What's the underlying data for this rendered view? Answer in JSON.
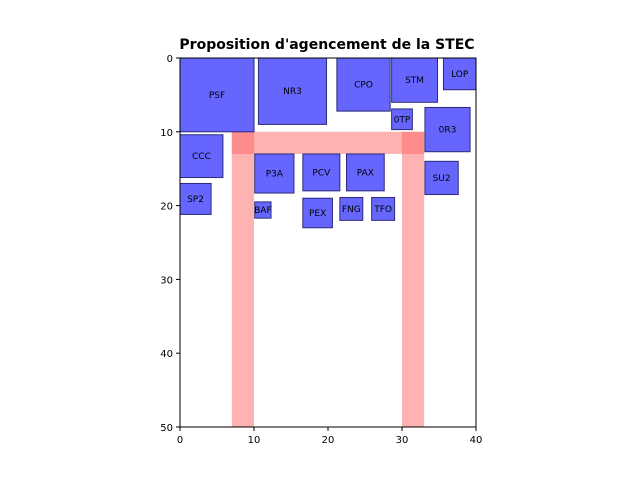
{
  "chart_data": {
    "type": "layout",
    "title": "Proposition d'agencement de la STEC",
    "xlabel": "",
    "ylabel": "",
    "xlim": [
      0,
      40
    ],
    "ylim": [
      0,
      50
    ],
    "y_inverted": true,
    "grid": false,
    "x_ticks": [
      0,
      10,
      20,
      30,
      40
    ],
    "y_ticks": [
      0,
      10,
      20,
      30,
      40,
      50
    ],
    "colors": {
      "box_fill": "#6666ff",
      "box_stroke": "#2b2b7a",
      "road_fill": "#ffb3b3",
      "road_overlap": "#ff6666"
    },
    "roads": [
      {
        "x": 7,
        "y": 10,
        "w": 3,
        "h": 40
      },
      {
        "x": 30,
        "y": 10,
        "w": 3,
        "h": 40
      },
      {
        "x": 7,
        "y": 10,
        "w": 26,
        "h": 3
      }
    ],
    "boxes": [
      {
        "label": "PSF",
        "x": 0,
        "y": 0,
        "w": 10,
        "h": 10
      },
      {
        "label": "NR3",
        "x": 10.6,
        "y": 0,
        "w": 9.2,
        "h": 9
      },
      {
        "label": "CPO",
        "x": 21.2,
        "y": 0,
        "w": 7.2,
        "h": 7.2
      },
      {
        "label": "STM",
        "x": 28.6,
        "y": 0,
        "w": 6.2,
        "h": 6
      },
      {
        "label": "LOP",
        "x": 35.6,
        "y": 0,
        "w": 4.4,
        "h": 4.3
      },
      {
        "label": "0TP",
        "x": 28.6,
        "y": 6.9,
        "w": 2.8,
        "h": 2.8
      },
      {
        "label": "0R3",
        "x": 33.1,
        "y": 6.7,
        "w": 6.1,
        "h": 6
      },
      {
        "label": "CCC",
        "x": 0,
        "y": 10.4,
        "w": 5.8,
        "h": 5.8
      },
      {
        "label": "P3A",
        "x": 10.1,
        "y": 13,
        "w": 5.3,
        "h": 5.3
      },
      {
        "label": "PCV",
        "x": 16.6,
        "y": 13,
        "w": 5,
        "h": 5
      },
      {
        "label": "PAX",
        "x": 22.5,
        "y": 13,
        "w": 5.1,
        "h": 5
      },
      {
        "label": "SU2",
        "x": 33.1,
        "y": 14,
        "w": 4.5,
        "h": 4.5
      },
      {
        "label": "SP2",
        "x": 0,
        "y": 17,
        "w": 4.2,
        "h": 4.2
      },
      {
        "label": "BAF",
        "x": 10.1,
        "y": 19.5,
        "w": 2.2,
        "h": 2.2
      },
      {
        "label": "PEX",
        "x": 16.6,
        "y": 19,
        "w": 4,
        "h": 4
      },
      {
        "label": "FNG",
        "x": 21.6,
        "y": 18.9,
        "w": 3.1,
        "h": 3.1
      },
      {
        "label": "TFO",
        "x": 25.9,
        "y": 18.9,
        "w": 3.1,
        "h": 3.1
      }
    ]
  }
}
